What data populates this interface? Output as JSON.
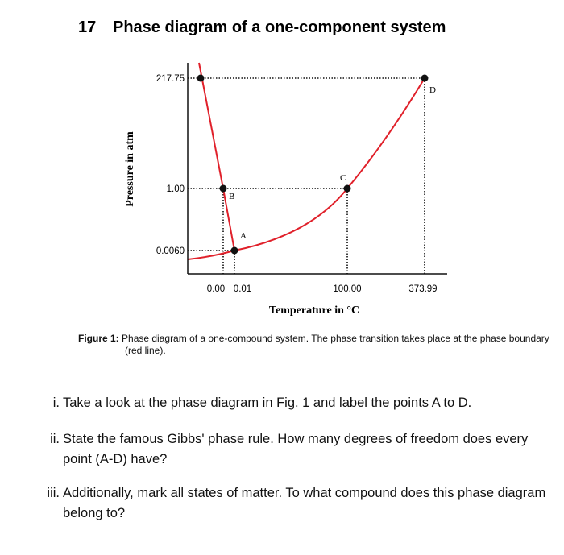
{
  "header": {
    "number": "17",
    "title": "Phase diagram of a one-component system"
  },
  "figure": {
    "y_axis_label": "Pressure in atm",
    "x_axis_label": "Temperature in °C",
    "y_ticks": [
      "217.75",
      "1.00",
      "0.0060"
    ],
    "x_ticks": [
      "0.00",
      "0.01",
      "100.00",
      "373.99"
    ],
    "points": [
      "A",
      "B",
      "C",
      "D"
    ],
    "caption_label": "Figure 1:",
    "caption": "Phase diagram of a one-compound system. The phase transition takes place at the phase boundary (red line)."
  },
  "questions": [
    {
      "marker": "i.",
      "text": "Take a look at the phase diagram in Fig. 1 and label the points A to D."
    },
    {
      "marker": "ii.",
      "text": "State the famous Gibbs' phase rule. How many degrees of freedom does every point (A-D) have?"
    },
    {
      "marker": "iii.",
      "text": "Additionally, mark all states of matter. To what compound does this phase diagram belong to?"
    }
  ]
}
